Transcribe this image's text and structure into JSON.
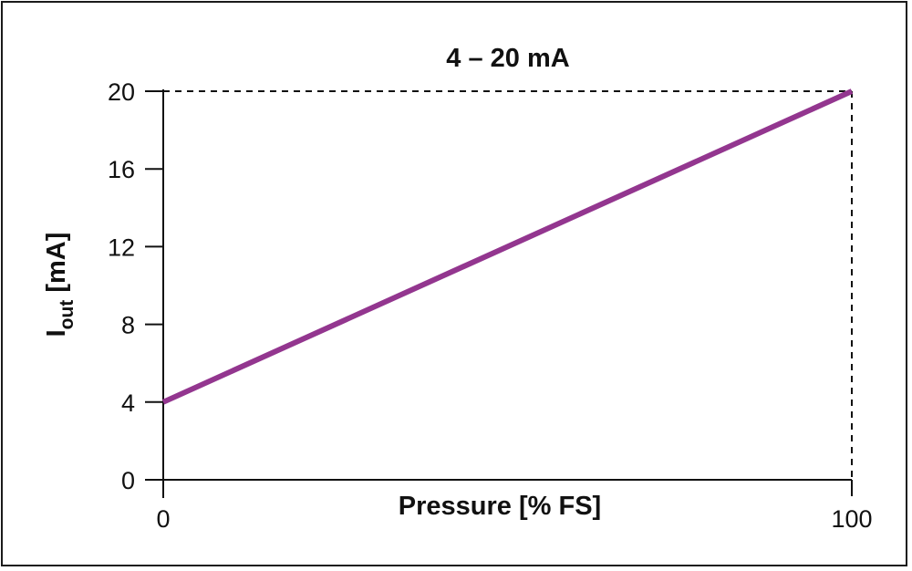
{
  "chart_data": {
    "type": "line",
    "title": "4 – 20 mA",
    "xlabel": "Pressure [% FS]",
    "ylabel": {
      "main": "I",
      "sub": "out",
      "unit": " [mA]"
    },
    "x_ticks": [
      "0",
      "100"
    ],
    "y_ticks": [
      "0",
      "4",
      "8",
      "12",
      "16",
      "20"
    ],
    "xlim": [
      0,
      100
    ],
    "ylim": [
      0,
      20
    ],
    "series": [
      {
        "x": [
          0,
          100
        ],
        "y": [
          4,
          20
        ],
        "color": "#93368f"
      }
    ],
    "reference_lines": [
      {
        "orientation": "horizontal",
        "value": 20,
        "style": "dashed"
      },
      {
        "orientation": "vertical",
        "value": 100,
        "style": "dashed"
      }
    ],
    "grid": false
  }
}
